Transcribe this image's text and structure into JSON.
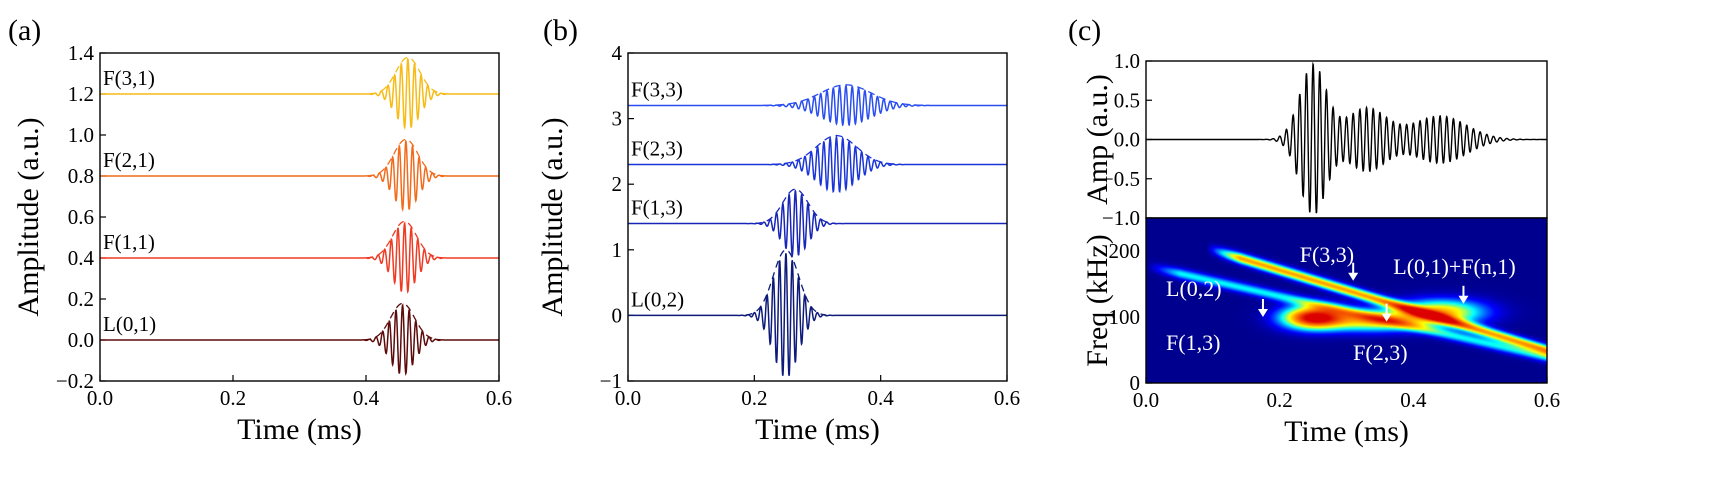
{
  "chart_data": [
    {
      "panel": "(a)",
      "type": "line",
      "xlabel": "Time (ms)",
      "ylabel": "Amplitude (a.u.)",
      "xlim": [
        0.0,
        0.6
      ],
      "ylim": [
        -0.2,
        1.4
      ],
      "xticks": [
        "0.0",
        "0.2",
        "0.4",
        "0.6"
      ],
      "yticks": [
        "−0.2",
        "0.0",
        "0.2",
        "0.4",
        "0.6",
        "0.8",
        "1.0",
        "1.2",
        "1.4"
      ],
      "series": [
        {
          "name": "L(0,1)",
          "baseline": 0.0,
          "center": 0.455,
          "width": 0.018,
          "amplitude": 0.17,
          "freq_khz": 100,
          "color": "#5c0a0a"
        },
        {
          "name": "F(1,1)",
          "baseline": 0.4,
          "center": 0.458,
          "width": 0.018,
          "amplitude": 0.17,
          "freq_khz": 100,
          "color": "#f03a22"
        },
        {
          "name": "F(2,1)",
          "baseline": 0.8,
          "center": 0.46,
          "width": 0.018,
          "amplitude": 0.17,
          "freq_khz": 100,
          "color": "#f26b1d"
        },
        {
          "name": "F(3,1)",
          "baseline": 1.2,
          "center": 0.463,
          "width": 0.018,
          "amplitude": 0.17,
          "freq_khz": 100,
          "color": "#f7bb16"
        }
      ]
    },
    {
      "panel": "(b)",
      "type": "line",
      "xlabel": "Time (ms)",
      "ylabel": "Amplitude (a.u.)",
      "xlim": [
        0.0,
        0.6
      ],
      "ylim": [
        -1,
        4
      ],
      "xticks": [
        "0.0",
        "0.2",
        "0.4",
        "0.6"
      ],
      "yticks": [
        "−1",
        "0",
        "1",
        "2",
        "3",
        "4"
      ],
      "series": [
        {
          "name": "L(0,2)",
          "baseline": 0.0,
          "center": 0.25,
          "width": 0.02,
          "amplitude": 0.95,
          "freq_khz": 100,
          "color": "#0d1a7a"
        },
        {
          "name": "F(1,3)",
          "baseline": 1.4,
          "center": 0.265,
          "width": 0.02,
          "amplitude": 0.5,
          "freq_khz": 100,
          "color": "#1826b8"
        },
        {
          "name": "F(2,3)",
          "baseline": 2.3,
          "center": 0.33,
          "width": 0.032,
          "amplitude": 0.42,
          "freq_khz": 100,
          "color": "#1a35d8"
        },
        {
          "name": "F(3,3)",
          "baseline": 3.2,
          "center": 0.345,
          "width": 0.04,
          "amplitude": 0.3,
          "freq_khz": 100,
          "color": "#2a4ef0"
        }
      ]
    },
    {
      "panel": "(c)",
      "type": "line",
      "xlabel": "",
      "ylabel": "Amp (a.u.)",
      "xlim": [
        0.0,
        0.6
      ],
      "ylim": [
        -1.0,
        1.0
      ],
      "yticks": [
        "−1.0",
        "−0.5",
        "0.0",
        "0.5",
        "1.0"
      ],
      "series": [
        {
          "name": "",
          "color": "#000000",
          "components": [
            {
              "center": 0.25,
              "width": 0.02,
              "amplitude": 0.95
            },
            {
              "center": 0.33,
              "width": 0.03,
              "amplitude": 0.4
            },
            {
              "center": 0.44,
              "width": 0.04,
              "amplitude": 0.3
            }
          ]
        }
      ]
    },
    {
      "panel": "(c)",
      "type": "heatmap",
      "xlabel": "Time (ms)",
      "ylabel": "Freq (kHz)",
      "xlim": [
        0.0,
        0.6
      ],
      "ylim": [
        0,
        250
      ],
      "xticks": [
        "0.0",
        "0.2",
        "0.4",
        "0.6"
      ],
      "yticks": [
        "0",
        "100",
        "200"
      ],
      "background": "#00008f",
      "blobs": [
        {
          "t": 0.25,
          "f": 100,
          "st": 0.032,
          "sf": 12,
          "i": 1.0
        },
        {
          "t": 0.34,
          "f": 95,
          "st": 0.05,
          "sf": 11,
          "i": 0.6
        },
        {
          "t": 0.44,
          "f": 108,
          "st": 0.045,
          "sf": 13,
          "i": 0.65
        }
      ],
      "bands": [
        {
          "t0": 0.09,
          "f0": 205,
          "t1": 0.6,
          "f1": 50,
          "i": 0.7
        },
        {
          "t0": 0.0,
          "f0": 178,
          "t1": 0.6,
          "f1": 40,
          "i": 0.35
        }
      ],
      "annotations": [
        {
          "text": "F(3,3)",
          "x": 0.23,
          "y": 183,
          "arrow_x": 0.31,
          "arrow_y": 155
        },
        {
          "text": "L(0,1)+F(n,1)",
          "x": 0.37,
          "y": 165,
          "arrow_x": 0.475,
          "arrow_y": 120
        },
        {
          "text": "L(0,2)",
          "x": 0.03,
          "y": 132,
          "arrow_x": 0.175,
          "arrow_y": 100
        },
        {
          "text": "F(1,3)",
          "x": 0.03,
          "y": 50,
          "arrow_x": null,
          "arrow_y": null
        },
        {
          "text": "F(2,3)",
          "x": 0.31,
          "y": 35,
          "arrow_x": 0.36,
          "arrow_y": 93
        }
      ]
    }
  ]
}
